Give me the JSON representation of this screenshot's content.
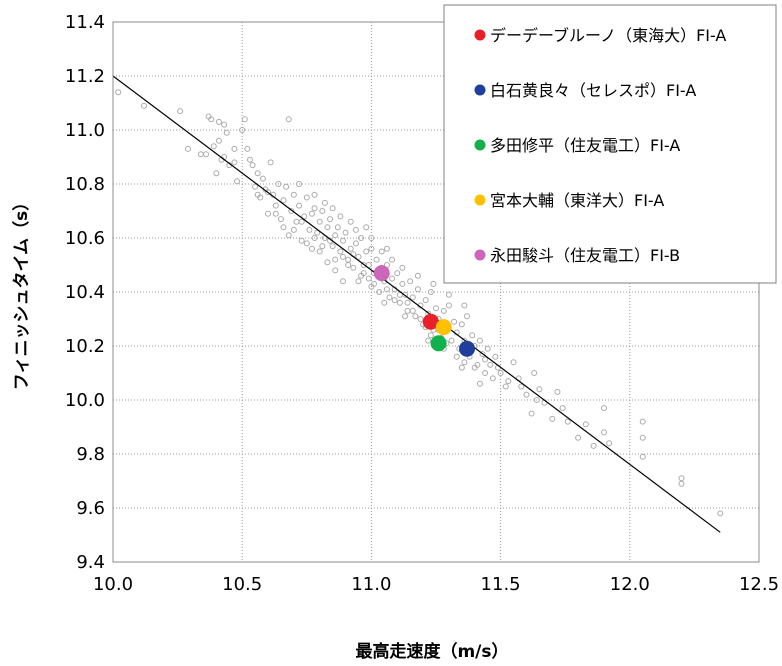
{
  "chart_data": {
    "type": "scatter",
    "title": "",
    "xlabel": "最高走速度（m/s）",
    "ylabel": "フィニッシュタイム（s）",
    "xlim": [
      10.0,
      12.5
    ],
    "ylim": [
      9.4,
      11.4
    ],
    "x_ticks": [
      "10.0",
      "10.5",
      "11.0",
      "11.5",
      "12.0",
      "12.5"
    ],
    "y_ticks": [
      "9.4",
      "9.6",
      "9.8",
      "10.0",
      "10.2",
      "10.4",
      "10.6",
      "10.8",
      "11.0",
      "11.2",
      "11.4"
    ],
    "grid": "dotted",
    "legend_position": "top-right",
    "regression_line": {
      "from": [
        10.0,
        11.2
      ],
      "to": [
        12.35,
        9.51
      ],
      "color": "#000000"
    },
    "background_points_color": "#aaaaaa",
    "background_points": [
      [
        10.02,
        11.14
      ],
      [
        10.12,
        11.09
      ],
      [
        10.26,
        11.07
      ],
      [
        10.29,
        10.93
      ],
      [
        10.34,
        10.91
      ],
      [
        10.36,
        10.91
      ],
      [
        10.37,
        11.05
      ],
      [
        10.38,
        11.04
      ],
      [
        10.39,
        10.94
      ],
      [
        10.4,
        10.84
      ],
      [
        10.41,
        11.03
      ],
      [
        10.41,
        10.96
      ],
      [
        10.42,
        10.89
      ],
      [
        10.43,
        11.02
      ],
      [
        10.43,
        10.9
      ],
      [
        10.45,
        10.87
      ],
      [
        10.47,
        10.93
      ],
      [
        10.48,
        10.81
      ],
      [
        10.5,
        11.0
      ],
      [
        10.51,
        11.04
      ],
      [
        10.52,
        10.93
      ],
      [
        10.54,
        10.87
      ],
      [
        10.55,
        10.79
      ],
      [
        10.56,
        10.84
      ],
      [
        10.57,
        10.75
      ],
      [
        10.58,
        10.82
      ],
      [
        10.59,
        10.78
      ],
      [
        10.6,
        10.69
      ],
      [
        10.61,
        10.88
      ],
      [
        10.62,
        10.76
      ],
      [
        10.63,
        10.72
      ],
      [
        10.64,
        10.8
      ],
      [
        10.65,
        10.67
      ],
      [
        10.66,
        10.74
      ],
      [
        10.67,
        10.79
      ],
      [
        10.68,
        11.04
      ],
      [
        10.68,
        10.61
      ],
      [
        10.69,
        10.7
      ],
      [
        10.7,
        10.76
      ],
      [
        10.71,
        10.66
      ],
      [
        10.72,
        10.72
      ],
      [
        10.73,
        10.59
      ],
      [
        10.74,
        10.68
      ],
      [
        10.75,
        10.75
      ],
      [
        10.76,
        10.63
      ],
      [
        10.77,
        10.69
      ],
      [
        10.77,
        10.56
      ],
      [
        10.78,
        10.71
      ],
      [
        10.79,
        10.62
      ],
      [
        10.8,
        10.66
      ],
      [
        10.8,
        10.55
      ],
      [
        10.81,
        10.7
      ],
      [
        10.82,
        10.6
      ],
      [
        10.83,
        10.64
      ],
      [
        10.83,
        10.51
      ],
      [
        10.84,
        10.67
      ],
      [
        10.85,
        10.57
      ],
      [
        10.86,
        10.61
      ],
      [
        10.86,
        10.48
      ],
      [
        10.87,
        10.64
      ],
      [
        10.88,
        10.55
      ],
      [
        10.89,
        10.59
      ],
      [
        10.89,
        10.44
      ],
      [
        10.9,
        10.62
      ],
      [
        10.91,
        10.52
      ],
      [
        10.92,
        10.56
      ],
      [
        10.92,
        10.66
      ],
      [
        10.93,
        10.49
      ],
      [
        10.94,
        10.58
      ],
      [
        10.95,
        10.53
      ],
      [
        10.95,
        10.44
      ],
      [
        10.96,
        10.6
      ],
      [
        10.97,
        10.47
      ],
      [
        10.98,
        10.55
      ],
      [
        10.98,
        10.64
      ],
      [
        10.99,
        10.5
      ],
      [
        11.0,
        10.42
      ],
      [
        11.0,
        10.56
      ],
      [
        11.01,
        10.47
      ],
      [
        11.02,
        10.52
      ],
      [
        11.03,
        10.4
      ],
      [
        11.04,
        10.49
      ],
      [
        11.04,
        10.55
      ],
      [
        11.05,
        10.44
      ],
      [
        11.06,
        10.5
      ],
      [
        11.07,
        10.38
      ],
      [
        11.08,
        10.45
      ],
      [
        11.08,
        10.52
      ],
      [
        11.09,
        10.41
      ],
      [
        11.1,
        10.47
      ],
      [
        11.11,
        10.36
      ],
      [
        11.12,
        10.43
      ],
      [
        11.13,
        10.39
      ],
      [
        11.14,
        10.33
      ],
      [
        11.15,
        10.44
      ],
      [
        11.16,
        10.38
      ],
      [
        11.17,
        10.31
      ],
      [
        11.18,
        10.41
      ],
      [
        11.19,
        10.35
      ],
      [
        11.2,
        10.28
      ],
      [
        11.21,
        10.37
      ],
      [
        11.22,
        10.32
      ],
      [
        11.23,
        10.4
      ],
      [
        11.24,
        10.26
      ],
      [
        11.25,
        10.34
      ],
      [
        11.26,
        10.3
      ],
      [
        11.27,
        10.23
      ],
      [
        11.28,
        10.33
      ],
      [
        11.29,
        10.27
      ],
      [
        11.3,
        10.35
      ],
      [
        11.31,
        10.22
      ],
      [
        11.32,
        10.29
      ],
      [
        11.33,
        10.25
      ],
      [
        11.34,
        10.19
      ],
      [
        11.35,
        10.28
      ],
      [
        11.36,
        10.22
      ],
      [
        11.37,
        10.31
      ],
      [
        11.38,
        10.16
      ],
      [
        11.39,
        10.24
      ],
      [
        11.4,
        10.2
      ],
      [
        11.41,
        10.13
      ],
      [
        11.42,
        10.22
      ],
      [
        11.43,
        10.17
      ],
      [
        11.44,
        10.1
      ],
      [
        11.45,
        10.19
      ],
      [
        11.46,
        10.13
      ],
      [
        11.47,
        10.08
      ],
      [
        11.48,
        10.16
      ],
      [
        11.5,
        10.1
      ],
      [
        11.52,
        10.05
      ],
      [
        11.55,
        10.14
      ],
      [
        11.57,
        10.08
      ],
      [
        11.6,
        10.02
      ],
      [
        11.62,
        9.95
      ],
      [
        11.63,
        10.1
      ],
      [
        11.65,
        10.04
      ],
      [
        11.67,
        9.99
      ],
      [
        11.7,
        9.93
      ],
      [
        11.72,
        10.03
      ],
      [
        11.74,
        9.97
      ],
      [
        11.76,
        9.92
      ],
      [
        11.8,
        9.86
      ],
      [
        11.83,
        9.91
      ],
      [
        11.86,
        9.83
      ],
      [
        11.9,
        9.97
      ],
      [
        11.9,
        9.88
      ],
      [
        11.92,
        9.84
      ],
      [
        12.05,
        9.92
      ],
      [
        12.05,
        9.86
      ],
      [
        12.05,
        9.79
      ],
      [
        12.2,
        9.71
      ],
      [
        12.2,
        9.69
      ],
      [
        12.35,
        9.58
      ],
      [
        10.44,
        10.99
      ],
      [
        10.47,
        10.88
      ],
      [
        10.53,
        10.89
      ],
      [
        10.56,
        10.76
      ],
      [
        10.6,
        10.77
      ],
      [
        10.63,
        10.69
      ],
      [
        10.66,
        10.64
      ],
      [
        10.7,
        10.63
      ],
      [
        10.73,
        10.66
      ],
      [
        10.75,
        10.58
      ],
      [
        10.78,
        10.6
      ],
      [
        10.81,
        10.57
      ],
      [
        10.84,
        10.59
      ],
      [
        10.86,
        10.52
      ],
      [
        10.89,
        10.53
      ],
      [
        10.91,
        10.5
      ],
      [
        10.93,
        10.54
      ],
      [
        10.96,
        10.46
      ],
      [
        10.99,
        10.45
      ],
      [
        11.01,
        10.43
      ],
      [
        11.03,
        10.46
      ],
      [
        11.06,
        10.41
      ],
      [
        11.09,
        10.37
      ],
      [
        11.11,
        10.39
      ],
      [
        11.14,
        10.36
      ],
      [
        11.16,
        10.33
      ],
      [
        11.19,
        10.3
      ],
      [
        11.21,
        10.27
      ],
      [
        11.23,
        10.24
      ],
      [
        11.26,
        10.26
      ],
      [
        11.29,
        10.21
      ],
      [
        11.33,
        10.16
      ],
      [
        11.36,
        10.14
      ],
      [
        11.4,
        10.12
      ],
      [
        11.44,
        10.15
      ],
      [
        11.49,
        10.12
      ],
      [
        11.53,
        10.07
      ],
      [
        11.58,
        10.05
      ],
      [
        11.64,
        10.0
      ],
      [
        10.82,
        10.73
      ],
      [
        10.88,
        10.68
      ],
      [
        10.94,
        10.63
      ],
      [
        11.0,
        10.6
      ],
      [
        11.06,
        10.56
      ],
      [
        11.12,
        10.49
      ],
      [
        11.18,
        10.46
      ],
      [
        11.24,
        10.43
      ],
      [
        11.3,
        10.39
      ],
      [
        11.36,
        10.35
      ],
      [
        10.72,
        10.8
      ],
      [
        10.78,
        10.76
      ],
      [
        10.85,
        10.71
      ],
      [
        10.97,
        10.5
      ],
      [
        11.05,
        10.36
      ],
      [
        11.13,
        10.31
      ],
      [
        11.22,
        10.22
      ],
      [
        11.28,
        10.19
      ],
      [
        11.35,
        10.12
      ],
      [
        11.42,
        10.06
      ]
    ],
    "series": [
      {
        "name": "デーデーブルーノ（東海大）FI-A",
        "x": 11.23,
        "y": 10.29,
        "color": "#e8202a"
      },
      {
        "name": "白石黄良々（セレスポ）FI-A",
        "x": 11.37,
        "y": 10.19,
        "color": "#1f3f9a"
      },
      {
        "name": "多田修平（住友電工）FI-A",
        "x": 11.26,
        "y": 10.21,
        "color": "#10b04a"
      },
      {
        "name": "宮本大輔（東洋大）FI-A",
        "x": 11.28,
        "y": 10.27,
        "color": "#ffc000"
      },
      {
        "name": "永田駿斗（住友電工）FI-B",
        "x": 11.04,
        "y": 10.47,
        "color": "#cc66bb"
      }
    ]
  }
}
